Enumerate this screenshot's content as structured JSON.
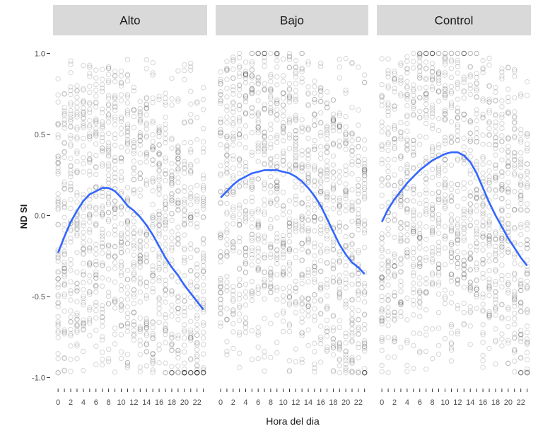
{
  "chart_data": {
    "type": "scatter",
    "xlabel": "Hora del dia",
    "ylabel": "ND SI",
    "xlim": [
      -0.8,
      23.6
    ],
    "ylim": [
      -1.05,
      1.05
    ],
    "x_ticks": [
      0,
      2,
      4,
      6,
      8,
      10,
      12,
      14,
      16,
      18,
      20,
      22
    ],
    "y_ticks": [
      -1.0,
      -0.5,
      0.0,
      0.5,
      1.0
    ],
    "y_tick_labels": [
      "-1.0",
      "-0.5",
      "0.0",
      "0.5",
      "1.0"
    ],
    "grid": false,
    "point_style": "hollow grey circles, low opacity (dense overlap appears dark)",
    "smooth_color": "#3366ff",
    "panels": [
      {
        "name": "Alto",
        "smooth": {
          "x": [
            0,
            1,
            2,
            3,
            4,
            5,
            6,
            7,
            8,
            9,
            10,
            11,
            12,
            13,
            14,
            15,
            16,
            17,
            18,
            19,
            20,
            21,
            22,
            23
          ],
          "y": [
            -0.23,
            -0.13,
            -0.04,
            0.03,
            0.09,
            0.13,
            0.15,
            0.17,
            0.17,
            0.15,
            0.11,
            0.06,
            0.03,
            -0.01,
            -0.06,
            -0.12,
            -0.19,
            -0.26,
            -0.32,
            -0.37,
            -0.43,
            -0.48,
            -0.53,
            -0.58
          ]
        }
      },
      {
        "name": "Bajo",
        "smooth": {
          "x": [
            0,
            1,
            2,
            3,
            4,
            5,
            6,
            7,
            8,
            9,
            10,
            11,
            12,
            13,
            14,
            15,
            16,
            17,
            18,
            19,
            20,
            21,
            22,
            23
          ],
          "y": [
            0.11,
            0.15,
            0.19,
            0.22,
            0.24,
            0.26,
            0.27,
            0.28,
            0.28,
            0.28,
            0.27,
            0.26,
            0.24,
            0.21,
            0.17,
            0.12,
            0.06,
            -0.02,
            -0.1,
            -0.18,
            -0.24,
            -0.29,
            -0.32,
            -0.36
          ]
        }
      },
      {
        "name": "Control",
        "smooth": {
          "x": [
            0,
            1,
            2,
            3,
            4,
            5,
            6,
            7,
            8,
            9,
            10,
            11,
            12,
            13,
            14,
            15,
            16,
            17,
            18,
            19,
            20,
            21,
            22,
            23
          ],
          "y": [
            -0.04,
            0.04,
            0.1,
            0.15,
            0.2,
            0.24,
            0.28,
            0.31,
            0.34,
            0.36,
            0.38,
            0.39,
            0.39,
            0.37,
            0.33,
            0.26,
            0.17,
            0.08,
            0.0,
            -0.07,
            -0.14,
            -0.2,
            -0.26,
            -0.31
          ]
        }
      }
    ]
  }
}
